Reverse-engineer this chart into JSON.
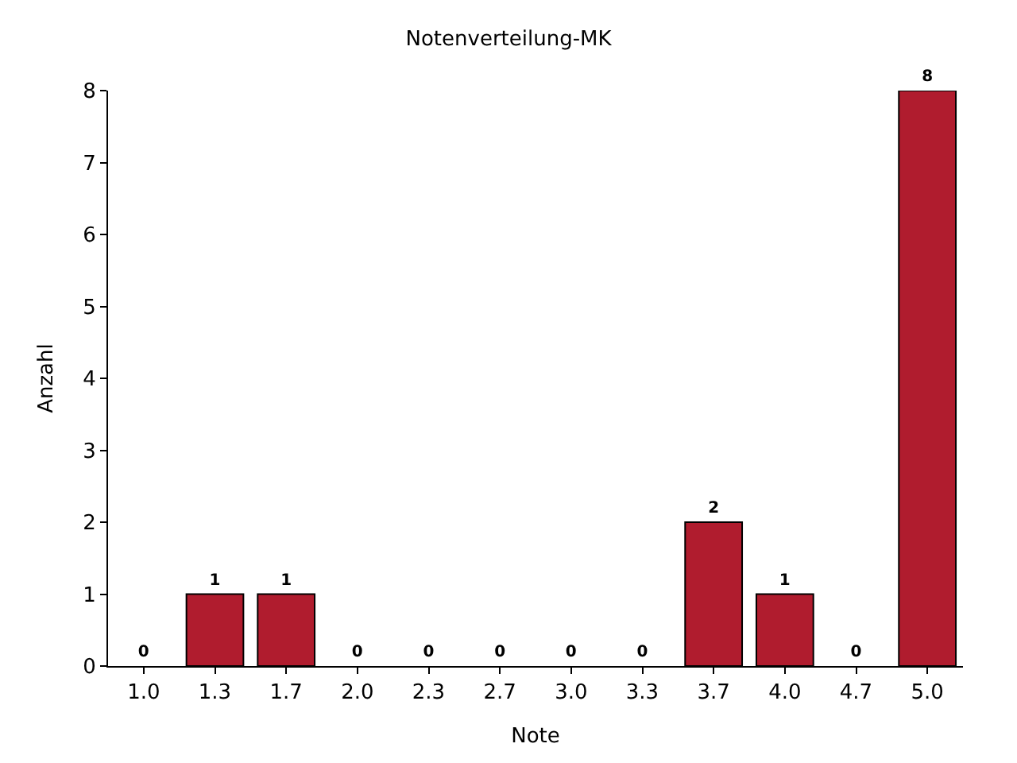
{
  "chart_data": {
    "type": "bar",
    "title": "Notenverteilung-MK",
    "xlabel": "Note",
    "ylabel": "Anzahl",
    "categories": [
      "1.0",
      "1.3",
      "1.7",
      "2.0",
      "2.3",
      "2.7",
      "3.0",
      "3.3",
      "3.7",
      "4.0",
      "4.7",
      "5.0"
    ],
    "values": [
      0,
      1,
      1,
      0,
      0,
      0,
      0,
      0,
      2,
      1,
      0,
      8
    ],
    "color": "#b01c2e",
    "ylim": [
      0,
      8
    ],
    "yticks": [
      0,
      1,
      2,
      3,
      4,
      5,
      6,
      7,
      8
    ],
    "data_labels": true
  }
}
